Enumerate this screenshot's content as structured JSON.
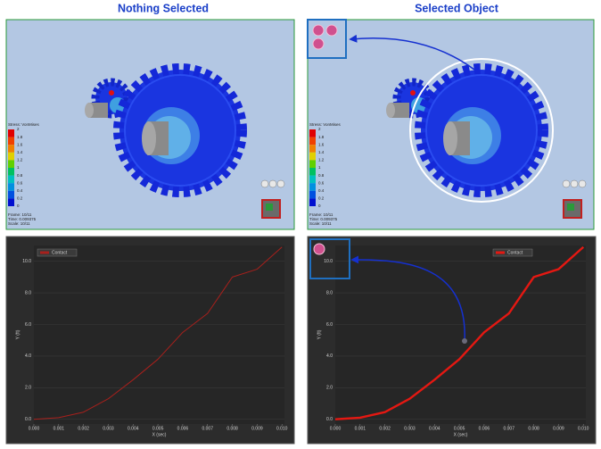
{
  "headings": [
    "Nothing  Selected",
    "Selected Object"
  ],
  "viewports": [
    {
      "stress_title": "Stress: VonMises",
      "scale_labels": [
        "2",
        "1.8",
        "1.6",
        "1.4",
        "1.2",
        "1",
        "0.8",
        "0.6",
        "0.4",
        "0.2",
        "0"
      ],
      "frame": "Frame: 10/11",
      "time": "Time: 0.009375",
      "scale": "Scale: 10/11"
    },
    {
      "stress_title": "Stress: VonMises",
      "scale_labels": [
        "2",
        "1.8",
        "1.6",
        "1.4",
        "1.2",
        "1",
        "0.8",
        "0.6",
        "0.4",
        "0.2",
        "0"
      ],
      "frame": "Frame: 10/11",
      "time": "Time: 0.009375",
      "scale": "Scale: 10/11"
    }
  ],
  "chart_data": [
    {
      "type": "line",
      "x_label": "X (sec)",
      "y_label": "Y (ft)",
      "x": [
        0,
        0.001,
        0.002,
        0.003,
        0.004,
        0.005,
        0.006,
        0.007,
        0.008,
        0.009,
        0.01
      ],
      "series": [
        {
          "name": "Contact",
          "color": "#a8201c",
          "values": [
            0,
            0.1,
            0.45,
            1.3,
            2.5,
            3.8,
            5.5,
            6.7,
            9.0,
            9.5,
            10.9
          ]
        }
      ],
      "xlim": [
        0,
        0.0101
      ],
      "ylim": [
        -0.3,
        11
      ],
      "xticks": [
        {
          "value": 0,
          "label": "0.000"
        },
        {
          "value": 0.001,
          "label": "0.001"
        },
        {
          "value": 0.002,
          "label": "0.002"
        },
        {
          "value": 0.003,
          "label": "0.003"
        },
        {
          "value": 0.004,
          "label": "0.004"
        },
        {
          "value": 0.005,
          "label": "0.005"
        },
        {
          "value": 0.006,
          "label": "0.006"
        },
        {
          "value": 0.007,
          "label": "0.007"
        },
        {
          "value": 0.008,
          "label": "0.008"
        },
        {
          "value": 0.009,
          "label": "0.009"
        },
        {
          "value": 0.01,
          "label": "0.010"
        }
      ],
      "yticks": [
        {
          "value": 0,
          "label": "0.0"
        },
        {
          "value": 2,
          "label": "2.0"
        },
        {
          "value": 4,
          "label": "4.0"
        },
        {
          "value": 6,
          "label": "6.0"
        },
        {
          "value": 8,
          "label": "8.0"
        },
        {
          "value": 10,
          "label": "10.0"
        }
      ],
      "grid": true,
      "legend": "upper left"
    },
    {
      "type": "line",
      "x_label": "X (sec)",
      "y_label": "Y (ft)",
      "x": [
        0,
        0.001,
        0.002,
        0.003,
        0.004,
        0.005,
        0.006,
        0.007,
        0.008,
        0.009,
        0.01
      ],
      "series": [
        {
          "name": "Contact",
          "color": "#e41812",
          "values": [
            0,
            0.1,
            0.45,
            1.3,
            2.5,
            3.8,
            5.5,
            6.7,
            9.0,
            9.5,
            10.9
          ]
        }
      ],
      "xlim": [
        0,
        0.0101
      ],
      "ylim": [
        -0.3,
        11
      ],
      "xticks": [
        {
          "value": 0,
          "label": "0.000"
        },
        {
          "value": 0.001,
          "label": "0.001"
        },
        {
          "value": 0.002,
          "label": "0.002"
        },
        {
          "value": 0.003,
          "label": "0.003"
        },
        {
          "value": 0.004,
          "label": "0.004"
        },
        {
          "value": 0.005,
          "label": "0.005"
        },
        {
          "value": 0.006,
          "label": "0.006"
        },
        {
          "value": 0.007,
          "label": "0.007"
        },
        {
          "value": 0.008,
          "label": "0.008"
        },
        {
          "value": 0.009,
          "label": "0.009"
        },
        {
          "value": 0.01,
          "label": "0.010"
        }
      ],
      "yticks": [
        {
          "value": 0,
          "label": "0.0"
        },
        {
          "value": 2,
          "label": "2.0"
        },
        {
          "value": 4,
          "label": "4.0"
        },
        {
          "value": 6,
          "label": "6.0"
        },
        {
          "value": 8,
          "label": "8.0"
        },
        {
          "value": 10,
          "label": "10.0"
        }
      ],
      "grid": true,
      "legend": "upper right"
    }
  ]
}
